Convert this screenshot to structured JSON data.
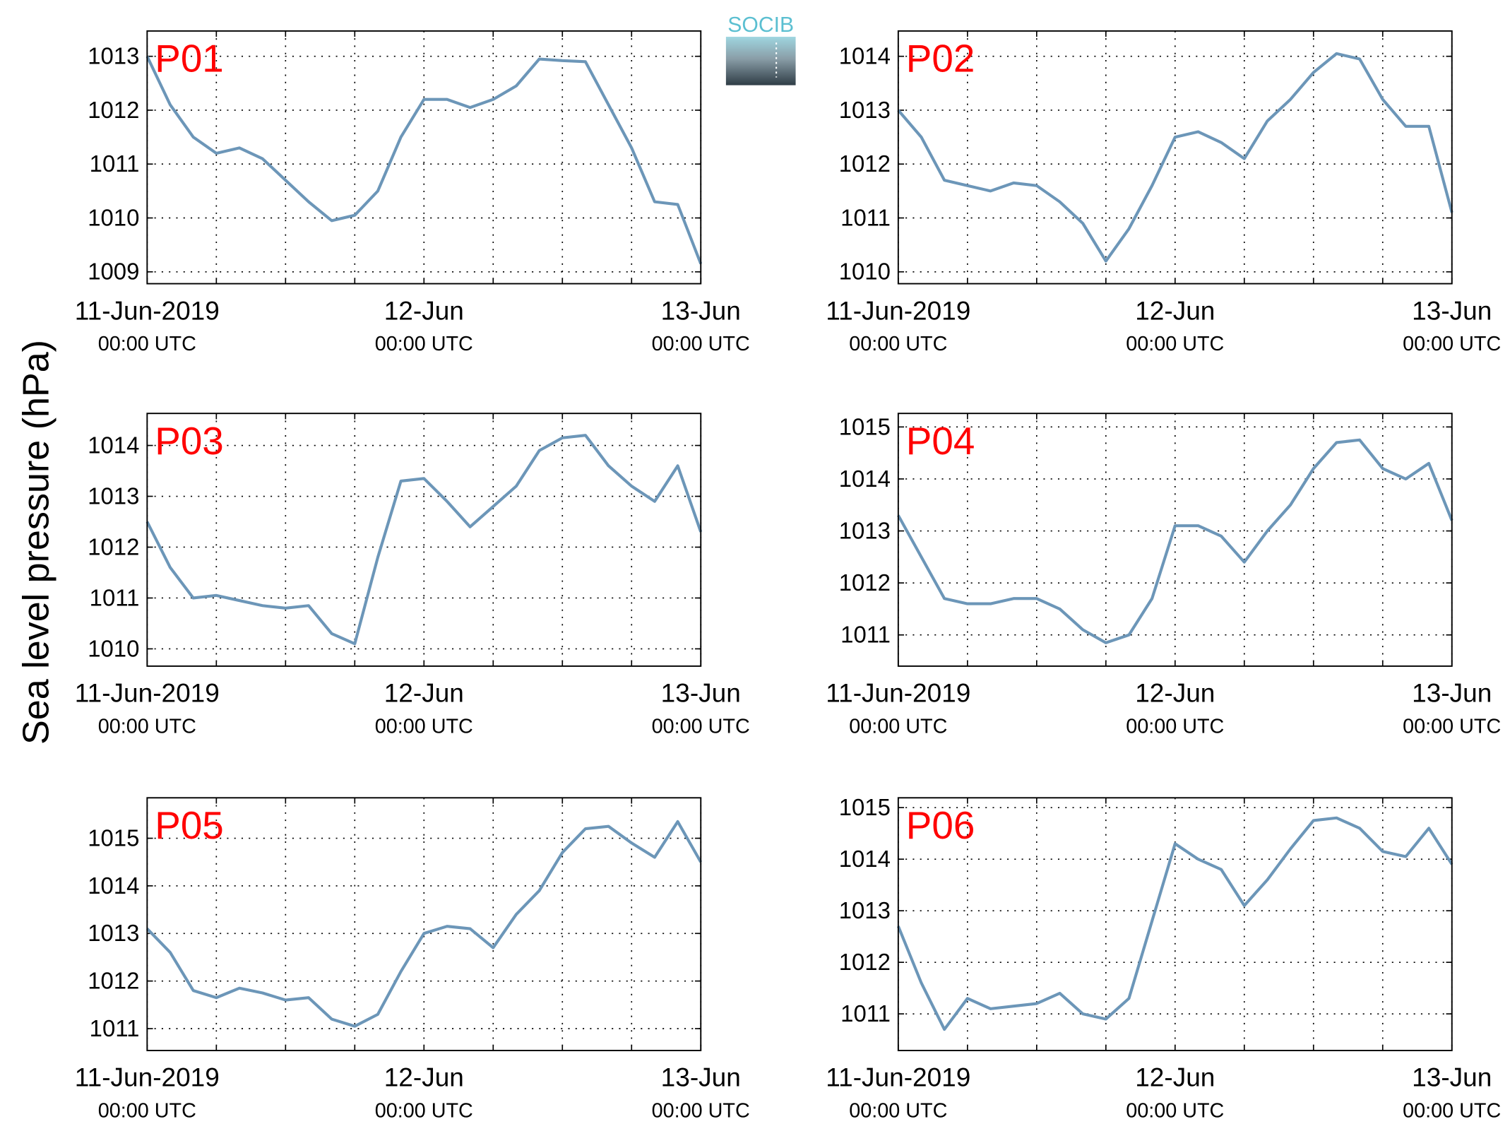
{
  "figure": {
    "ylabel": "Sea level pressure (hPa)",
    "logo": "SOCIB"
  },
  "chart_data": [
    {
      "type": "line",
      "title": "P01",
      "color": "#6c96b8",
      "grid": true,
      "x": [
        0,
        2,
        4,
        6,
        8,
        10,
        12,
        14,
        16,
        18,
        20,
        22,
        24,
        26,
        28,
        30,
        32,
        34,
        36,
        38,
        40,
        42,
        44,
        46,
        48
      ],
      "values": [
        1013.0,
        1012.1,
        1011.5,
        1011.2,
        1011.3,
        1011.1,
        1010.7,
        1010.3,
        1009.95,
        1010.05,
        1010.5,
        1011.5,
        1012.2,
        1012.2,
        1012.05,
        1012.2,
        1012.45,
        1012.95,
        1012.92,
        1012.9,
        1012.1,
        1011.3,
        1010.3,
        1010.25,
        1009.15
      ],
      "xlim": [
        0,
        48
      ],
      "xticks": [
        {
          "value": 0,
          "label": "11-Jun-2019",
          "sublabel": "00:00 UTC"
        },
        {
          "value": 24,
          "label": "12-Jun",
          "sublabel": "00:00 UTC"
        },
        {
          "value": 48,
          "label": "13-Jun",
          "sublabel": "00:00 UTC"
        }
      ],
      "xminor": [
        6,
        12,
        18,
        30,
        36,
        42
      ],
      "ylim": [
        1008.78,
        1013.47
      ],
      "yticks": [
        1009,
        1010,
        1011,
        1012,
        1013
      ]
    },
    {
      "type": "line",
      "title": "P02",
      "color": "#6c96b8",
      "grid": true,
      "x": [
        0,
        2,
        4,
        6,
        8,
        10,
        12,
        14,
        16,
        18,
        20,
        22,
        24,
        26,
        28,
        30,
        32,
        34,
        36,
        38,
        40,
        42,
        44,
        46,
        48
      ],
      "values": [
        1013.0,
        1012.5,
        1011.7,
        1011.6,
        1011.5,
        1011.65,
        1011.6,
        1011.3,
        1010.9,
        1010.2,
        1010.8,
        1011.6,
        1012.5,
        1012.6,
        1012.4,
        1012.1,
        1012.8,
        1013.2,
        1013.7,
        1014.05,
        1013.95,
        1013.2,
        1012.7,
        1012.7,
        1011.1
      ],
      "xlim": [
        0,
        48
      ],
      "xticks": [
        {
          "value": 0,
          "label": "11-Jun-2019",
          "sublabel": "00:00 UTC"
        },
        {
          "value": 24,
          "label": "12-Jun",
          "sublabel": "00:00 UTC"
        },
        {
          "value": 48,
          "label": "13-Jun",
          "sublabel": "00:00 UTC"
        }
      ],
      "xminor": [
        6,
        12,
        18,
        30,
        36,
        42
      ],
      "ylim": [
        1009.78,
        1014.47
      ],
      "yticks": [
        1010,
        1011,
        1012,
        1013,
        1014
      ]
    },
    {
      "type": "line",
      "title": "P03",
      "color": "#6c96b8",
      "grid": true,
      "x": [
        0,
        2,
        4,
        6,
        8,
        10,
        12,
        14,
        16,
        18,
        20,
        22,
        24,
        26,
        28,
        30,
        32,
        34,
        36,
        38,
        40,
        42,
        44,
        46,
        48
      ],
      "values": [
        1012.5,
        1011.6,
        1011.0,
        1011.05,
        1010.95,
        1010.85,
        1010.8,
        1010.85,
        1010.3,
        1010.1,
        1011.8,
        1013.3,
        1013.35,
        1012.9,
        1012.4,
        1012.8,
        1013.2,
        1013.9,
        1014.15,
        1014.2,
        1013.6,
        1013.2,
        1012.9,
        1013.6,
        1012.3
      ],
      "xlim": [
        0,
        48
      ],
      "xticks": [
        {
          "value": 0,
          "label": "11-Jun-2019",
          "sublabel": "00:00 UTC"
        },
        {
          "value": 24,
          "label": "12-Jun",
          "sublabel": "00:00 UTC"
        },
        {
          "value": 48,
          "label": "13-Jun",
          "sublabel": "00:00 UTC"
        }
      ],
      "xminor": [
        6,
        12,
        18,
        30,
        36,
        42
      ],
      "ylim": [
        1009.66,
        1014.63
      ],
      "yticks": [
        1010,
        1011,
        1012,
        1013,
        1014
      ]
    },
    {
      "type": "line",
      "title": "P04",
      "color": "#6c96b8",
      "grid": true,
      "x": [
        0,
        2,
        4,
        6,
        8,
        10,
        12,
        14,
        16,
        18,
        20,
        22,
        24,
        26,
        28,
        30,
        32,
        34,
        36,
        38,
        40,
        42,
        44,
        46,
        48
      ],
      "values": [
        1013.3,
        1012.5,
        1011.7,
        1011.6,
        1011.6,
        1011.7,
        1011.7,
        1011.5,
        1011.1,
        1010.85,
        1011.0,
        1011.7,
        1013.1,
        1013.1,
        1012.9,
        1012.4,
        1013.0,
        1013.5,
        1014.2,
        1014.7,
        1014.75,
        1014.2,
        1014.0,
        1014.3,
        1013.2
      ],
      "xlim": [
        0,
        48
      ],
      "xticks": [
        {
          "value": 0,
          "label": "11-Jun-2019",
          "sublabel": "00:00 UTC"
        },
        {
          "value": 24,
          "label": "12-Jun",
          "sublabel": "00:00 UTC"
        },
        {
          "value": 48,
          "label": "13-Jun",
          "sublabel": "00:00 UTC"
        }
      ],
      "xminor": [
        6,
        12,
        18,
        30,
        36,
        42
      ],
      "ylim": [
        1010.4,
        1015.26
      ],
      "yticks": [
        1011,
        1012,
        1013,
        1014,
        1015
      ]
    },
    {
      "type": "line",
      "title": "P05",
      "color": "#6c96b8",
      "grid": true,
      "x": [
        0,
        2,
        4,
        6,
        8,
        10,
        12,
        14,
        16,
        18,
        20,
        22,
        24,
        26,
        28,
        30,
        32,
        34,
        36,
        38,
        40,
        42,
        44,
        46,
        48
      ],
      "values": [
        1013.1,
        1012.6,
        1011.8,
        1011.65,
        1011.85,
        1011.75,
        1011.6,
        1011.65,
        1011.2,
        1011.05,
        1011.3,
        1012.2,
        1013.0,
        1013.15,
        1013.1,
        1012.7,
        1013.4,
        1013.9,
        1014.7,
        1015.2,
        1015.25,
        1014.9,
        1014.6,
        1015.35,
        1014.5
      ],
      "xlim": [
        0,
        48
      ],
      "xticks": [
        {
          "value": 0,
          "label": "11-Jun-2019",
          "sublabel": "00:00 UTC"
        },
        {
          "value": 24,
          "label": "12-Jun",
          "sublabel": "00:00 UTC"
        },
        {
          "value": 48,
          "label": "13-Jun",
          "sublabel": "00:00 UTC"
        }
      ],
      "xminor": [
        6,
        12,
        18,
        30,
        36,
        42
      ],
      "ylim": [
        1010.54,
        1015.85
      ],
      "yticks": [
        1011,
        1012,
        1013,
        1014,
        1015
      ]
    },
    {
      "type": "line",
      "title": "P06",
      "color": "#6c96b8",
      "grid": true,
      "x": [
        0,
        2,
        4,
        6,
        8,
        10,
        12,
        14,
        16,
        18,
        20,
        22,
        24,
        26,
        28,
        30,
        32,
        34,
        36,
        38,
        40,
        42,
        44,
        46,
        48
      ],
      "values": [
        1012.7,
        1011.6,
        1010.7,
        1011.3,
        1011.1,
        1011.15,
        1011.2,
        1011.4,
        1011.0,
        1010.9,
        1011.3,
        1012.8,
        1014.3,
        1014.0,
        1013.8,
        1013.1,
        1013.6,
        1014.2,
        1014.75,
        1014.8,
        1014.6,
        1014.15,
        1014.05,
        1014.6,
        1013.9
      ],
      "xlim": [
        0,
        48
      ],
      "xticks": [
        {
          "value": 0,
          "label": "11-Jun-2019",
          "sublabel": "00:00 UTC"
        },
        {
          "value": 24,
          "label": "12-Jun",
          "sublabel": "00:00 UTC"
        },
        {
          "value": 48,
          "label": "13-Jun",
          "sublabel": "00:00 UTC"
        }
      ],
      "xminor": [
        6,
        12,
        18,
        30,
        36,
        42
      ],
      "ylim": [
        1010.29,
        1015.19
      ],
      "yticks": [
        1011,
        1012,
        1013,
        1014,
        1015
      ]
    }
  ]
}
